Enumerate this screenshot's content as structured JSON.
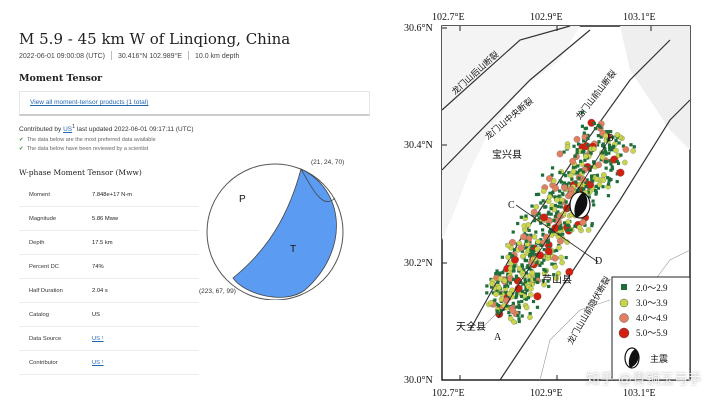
{
  "event": {
    "title": "M 5.9 - 45 km W of Linqiong, China",
    "time": "2022-06-01 09:00:08 (UTC)",
    "location": "30.416°N 102.989°E",
    "depth": "10.0 km depth"
  },
  "section_title": "Moment Tensor",
  "products_link": "View all moment-tensor products (1 total)",
  "contributed": {
    "prefix": "Contributed by",
    "source": "US",
    "sup": "1",
    "updated": " last updated 2022-06-01 09:17:11 (UTC)"
  },
  "checks": [
    "The data below are the most preferred data available",
    "The data below have been reviewed by a scientist"
  ],
  "tensor_title": "W-phase Moment Tensor (Mww)",
  "table": [
    {
      "key": "Moment",
      "value": "7.848e+17 N-m",
      "link": false
    },
    {
      "key": "Magnitude",
      "value": "5.86 Mww",
      "link": false
    },
    {
      "key": "Depth",
      "value": "17.5 km",
      "link": false
    },
    {
      "key": "Percent DC",
      "value": "74%",
      "link": false
    },
    {
      "key": "Half Duration",
      "value": "2.04 s",
      "link": false
    },
    {
      "key": "Catalog",
      "value": "US",
      "link": false
    },
    {
      "key": "Data Source",
      "value": "US ¹",
      "link": true
    },
    {
      "key": "Contributor",
      "value": "US ¹",
      "link": true
    }
  ],
  "beachball": {
    "label_p": "P",
    "label_t": "T",
    "np1": "(21, 24, 70)",
    "np2": "(223, 67, 99)",
    "color": "#5b9cf2"
  },
  "map": {
    "top_ticks": [
      "102.7°E",
      "102.9°E",
      "103.1°E"
    ],
    "bottom_ticks": [
      "102.7°E",
      "102.9°E",
      "103.1°E"
    ],
    "left_ticks": [
      "30.6°N",
      "30.4°N",
      "30.2°N",
      "30.0°N"
    ],
    "faults": [
      "龙门山后山断裂",
      "龙门山中央断裂",
      "龙门山前山断裂",
      "龙门山山前隐伏断裂"
    ],
    "places": [
      "宝兴县",
      "芦山县",
      "天全县"
    ],
    "points": [
      "A",
      "B",
      "C",
      "D"
    ],
    "legend": [
      {
        "label": "2.0～2.9",
        "color": "#1f6e3a"
      },
      {
        "label": "3.0～3.9",
        "color": "#c9d64a"
      },
      {
        "label": "4.0～4.9",
        "color": "#e08060"
      },
      {
        "label": "5.0～5.9",
        "color": "#d02010"
      }
    ],
    "mainshock_label": "主震"
  },
  "watermark": "知乎 @青铜玉弓手"
}
